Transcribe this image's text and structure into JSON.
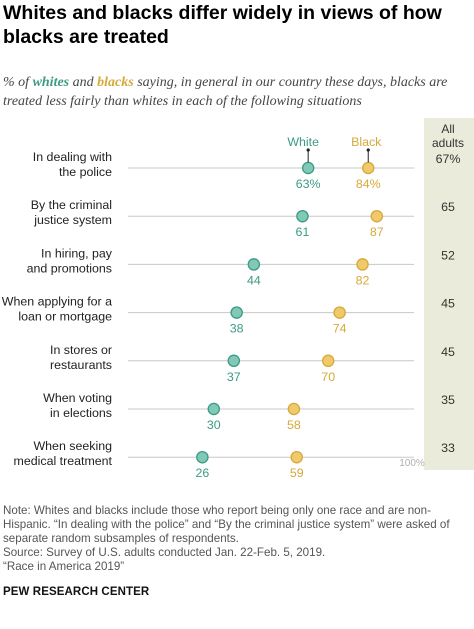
{
  "title": "Whites and blacks differ widely in views of how blacks are treated",
  "subtitle": {
    "prefix": "% of ",
    "white_word": "whites",
    "and": " and ",
    "black_word": "blacks",
    "suffix": " saying, in general in our country these days, blacks are treated less fairly than whites in each of the following situations"
  },
  "colors": {
    "white_series": "#3c9a86",
    "white_fill": "#7fc9b6",
    "black_series": "#d6a93a",
    "black_fill": "#f0c96a",
    "line": "#c8c8c8",
    "all_adults_bg": "#ebebdc"
  },
  "chart_data": {
    "type": "dot",
    "x_range": [
      0,
      100
    ],
    "axis_end_label": "100%",
    "all_adults_header": [
      "All",
      "adults"
    ],
    "series": [
      {
        "name": "White",
        "values": [
          63,
          61,
          44,
          38,
          37,
          30,
          26
        ]
      },
      {
        "name": "Black",
        "values": [
          84,
          87,
          82,
          74,
          70,
          58,
          59
        ]
      }
    ],
    "categories": [
      [
        "In dealing with",
        "the police"
      ],
      [
        "By the criminal",
        "justice system"
      ],
      [
        "In hiring, pay",
        "and promotions"
      ],
      [
        "When applying for a",
        "loan or mortgage"
      ],
      [
        "In stores or",
        "restaurants"
      ],
      [
        "When voting",
        "in elections"
      ],
      [
        "When seeking",
        "medical treatment"
      ]
    ],
    "white_labels": [
      "63%",
      "61",
      "44",
      "38",
      "37",
      "30",
      "26"
    ],
    "black_labels": [
      "84%",
      "87",
      "82",
      "74",
      "70",
      "58",
      "59"
    ],
    "all_adults": [
      "67%",
      "65",
      "52",
      "45",
      "45",
      "35",
      "33"
    ]
  },
  "notes": [
    "Note: Whites and blacks include those who report being only one race and are non-Hispanic. “In dealing with the police” and “By the criminal justice system” were asked of separate random subsamples of respondents.",
    "Source: Survey of U.S. adults conducted Jan. 22-Feb. 5, 2019.",
    "“Race in America 2019”"
  ],
  "brand": "PEW RESEARCH CENTER"
}
